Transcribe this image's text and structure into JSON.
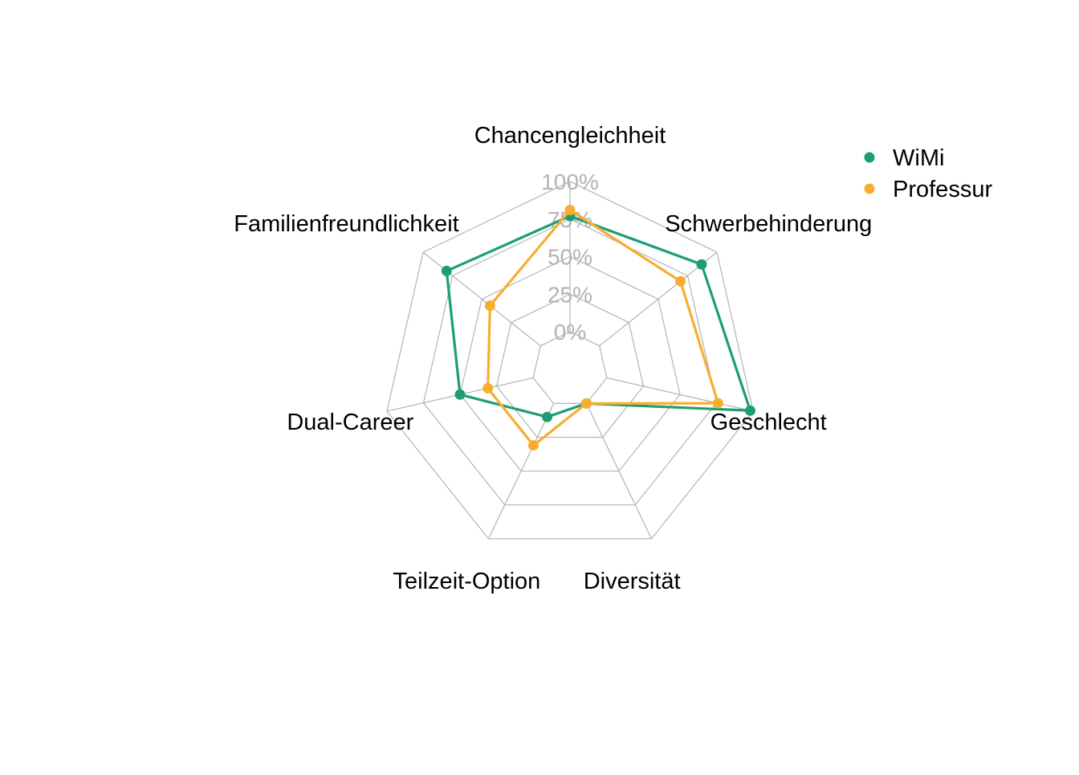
{
  "chart_data": {
    "type": "radar",
    "axes": [
      "Chancengleichheit",
      "Schwerbehinderung",
      "Geschlecht",
      "Diversität",
      "Teilzeit-Option",
      "Dual-Career",
      "Familienfreundlichkeit"
    ],
    "ticks": [
      "0%",
      "25%",
      "50%",
      "75%",
      "100%"
    ],
    "rlim": [
      0,
      1
    ],
    "grid": true,
    "legend_position": "top-right",
    "series": [
      {
        "name": "WiMi",
        "color": "#1b9e77",
        "values": [
          0.77,
          0.87,
          0.98,
          0.0,
          0.1,
          0.5,
          0.8
        ]
      },
      {
        "name": "Professur",
        "color": "#f7ae30",
        "values": [
          0.81,
          0.69,
          0.76,
          0.0,
          0.31,
          0.31,
          0.43
        ]
      }
    ]
  }
}
